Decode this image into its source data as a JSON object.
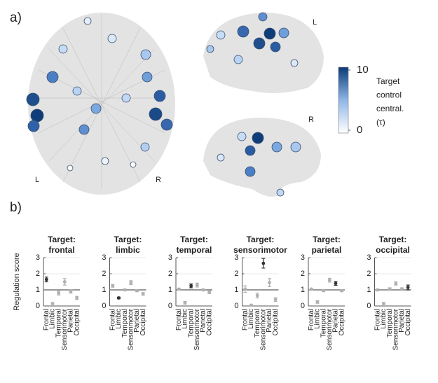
{
  "panel_labels": [
    "a)",
    "b)"
  ],
  "brain": {
    "axial_left": "L",
    "axial_right": "R",
    "sagittal_top": "L",
    "sagittal_bottom": "R"
  },
  "colorbar": {
    "ticks": [
      0,
      10
    ],
    "label_lines": [
      "Target",
      "control",
      "central.",
      "(τ)"
    ]
  },
  "chart_data": [
    {
      "type": "errorbar",
      "title_lines": [
        "Target:",
        "frontal"
      ],
      "ylabel": "Regulation score",
      "categories": [
        "Frontal",
        "Limbic",
        "Temporal",
        "Sensorimotor",
        "Parietal",
        "Occipital"
      ],
      "values": [
        1.65,
        0.15,
        0.8,
        1.5,
        0.9,
        0.5
      ],
      "errors": [
        0.15,
        0.05,
        0.12,
        0.2,
        0.1,
        0.1
      ],
      "colors": [
        "#333333",
        "#b0b0b0",
        "#b0b0b0",
        "#b0b0b0",
        "#b0b0b0",
        "#b0b0b0"
      ],
      "ylim": [
        0,
        3
      ],
      "yticks": [
        0,
        1,
        2,
        3
      ],
      "reference_line": 1
    },
    {
      "type": "errorbar",
      "title_lines": [
        "Target:",
        "limbic"
      ],
      "categories": [
        "Frontal",
        "Limbic",
        "Temporal",
        "Sensorimotor",
        "Parietal",
        "Occipital"
      ],
      "values": [
        1.25,
        0.5,
        1.0,
        1.45,
        0.95,
        0.75
      ],
      "errors": [
        0.08,
        0.05,
        0.05,
        0.12,
        0.05,
        0.08
      ],
      "colors": [
        "#b0b0b0",
        "#333333",
        "#b0b0b0",
        "#b0b0b0",
        "#b0b0b0",
        "#b0b0b0"
      ],
      "ylim": [
        0,
        3
      ],
      "yticks": [
        0,
        1,
        2,
        3
      ],
      "reference_line": 1
    },
    {
      "type": "errorbar",
      "title_lines": [
        "Target:",
        "temporal"
      ],
      "categories": [
        "Frontal",
        "Limbic",
        "Temporal",
        "Sensorimotor",
        "Parietal",
        "Occipital"
      ],
      "values": [
        1.05,
        0.2,
        1.25,
        1.3,
        1.0,
        0.85
      ],
      "errors": [
        0.05,
        0.08,
        0.12,
        0.12,
        0.05,
        0.08
      ],
      "colors": [
        "#b0b0b0",
        "#b0b0b0",
        "#333333",
        "#b0b0b0",
        "#b0b0b0",
        "#b0b0b0"
      ],
      "ylim": [
        0,
        3
      ],
      "yticks": [
        0,
        1,
        2,
        3
      ],
      "reference_line": 1
    },
    {
      "type": "errorbar",
      "title_lines": [
        "Target:",
        "sensorimotor"
      ],
      "categories": [
        "Frontal",
        "Limbic",
        "Temporal",
        "Sensorimotor",
        "Parietal",
        "Occipital"
      ],
      "values": [
        1.05,
        0.05,
        0.65,
        2.65,
        1.45,
        0.4
      ],
      "errors": [
        0.2,
        0.03,
        0.15,
        0.3,
        0.25,
        0.12
      ],
      "colors": [
        "#b0b0b0",
        "#b0b0b0",
        "#b0b0b0",
        "#333333",
        "#b0b0b0",
        "#b0b0b0"
      ],
      "ylim": [
        0,
        3
      ],
      "yticks": [
        0,
        1,
        2,
        3
      ],
      "reference_line": 1
    },
    {
      "type": "errorbar",
      "title_lines": [
        "Target:",
        "parietal"
      ],
      "categories": [
        "Frontal",
        "Limbic",
        "Temporal",
        "Sensorimotor",
        "Parietal",
        "Occipital"
      ],
      "values": [
        1.05,
        0.25,
        0.95,
        1.6,
        1.4,
        0.95
      ],
      "errors": [
        0.05,
        0.08,
        0.05,
        0.12,
        0.12,
        0.05
      ],
      "colors": [
        "#b0b0b0",
        "#b0b0b0",
        "#b0b0b0",
        "#b0b0b0",
        "#333333",
        "#b0b0b0"
      ],
      "ylim": [
        0,
        3
      ],
      "yticks": [
        0,
        1,
        2,
        3
      ],
      "reference_line": 1
    },
    {
      "type": "errorbar",
      "title_lines": [
        "Target:",
        "occipital"
      ],
      "categories": [
        "Frontal",
        "Limbic",
        "Temporal",
        "Sensorimotor",
        "Parietal",
        "Occipital"
      ],
      "values": [
        1.0,
        0.15,
        1.05,
        1.4,
        1.05,
        1.15
      ],
      "errors": [
        0.05,
        0.05,
        0.08,
        0.1,
        0.08,
        0.15
      ],
      "colors": [
        "#b0b0b0",
        "#b0b0b0",
        "#b0b0b0",
        "#b0b0b0",
        "#b0b0b0",
        "#333333"
      ],
      "ylim": [
        0,
        3
      ],
      "yticks": [
        0,
        1,
        2,
        3
      ],
      "reference_line": 1
    }
  ]
}
